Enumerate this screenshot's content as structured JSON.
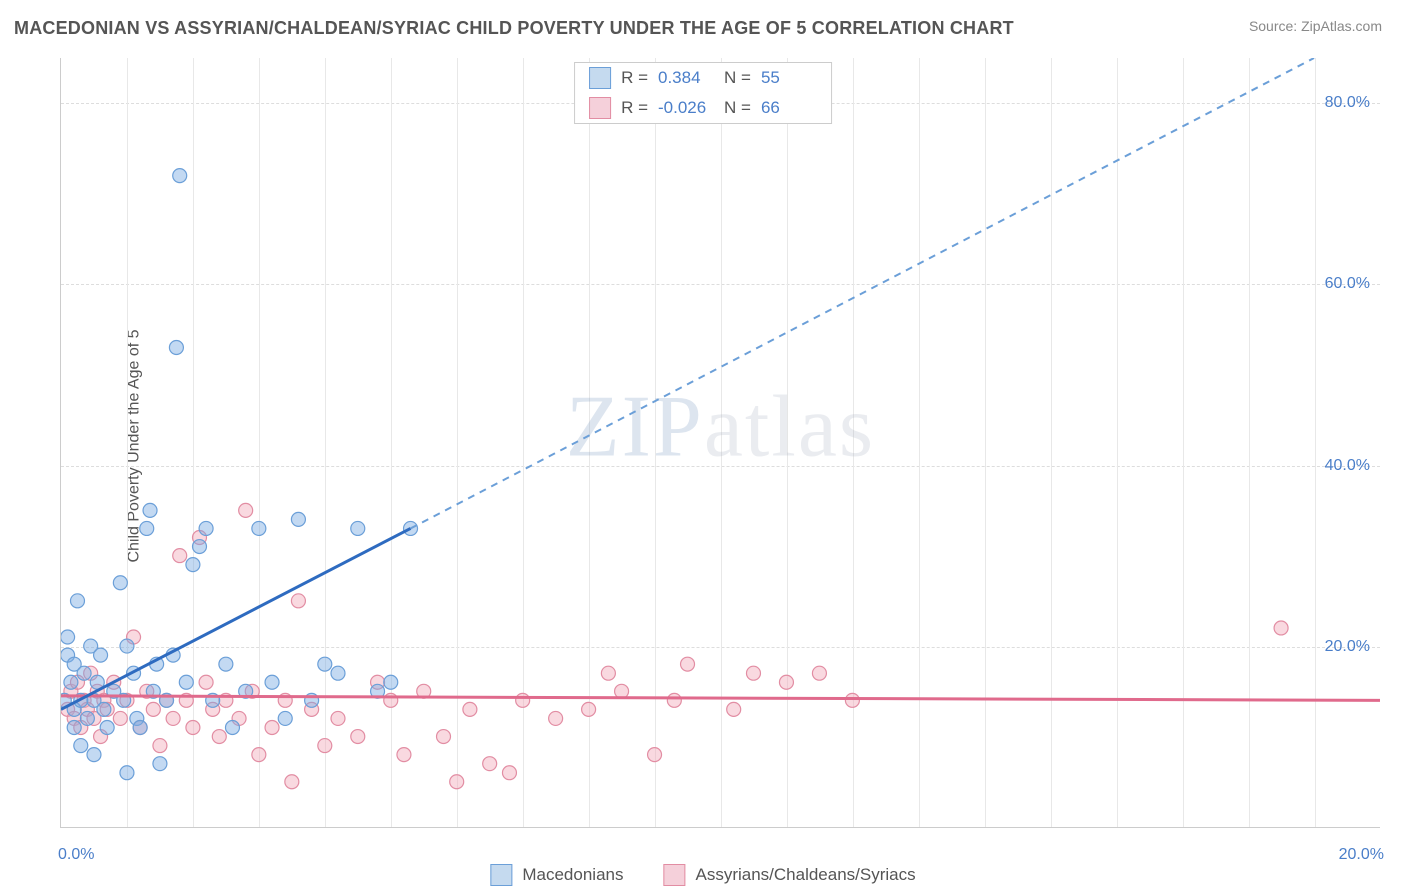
{
  "title": "MACEDONIAN VS ASSYRIAN/CHALDEAN/SYRIAC CHILD POVERTY UNDER THE AGE OF 5 CORRELATION CHART",
  "source": "Source: ZipAtlas.com",
  "y_axis_label": "Child Poverty Under the Age of 5",
  "watermark_a": "ZIP",
  "watermark_b": "atlas",
  "chart": {
    "type": "scatter",
    "xlim": [
      0,
      20
    ],
    "ylim": [
      0,
      85
    ],
    "x_ticks": [
      0,
      20
    ],
    "x_tick_labels": [
      "0.0%",
      "20.0%"
    ],
    "y_ticks": [
      20,
      40,
      60,
      80
    ],
    "y_tick_labels": [
      "20.0%",
      "40.0%",
      "60.0%",
      "80.0%"
    ],
    "x_minor_grid": [
      1,
      2,
      3,
      4,
      5,
      6,
      7,
      8,
      9,
      10,
      11,
      12,
      13,
      14,
      15,
      16,
      17,
      18,
      19
    ],
    "background_color": "#ffffff",
    "grid_color": "#dddddd",
    "minor_grid_color": "#eeeeee",
    "axis_color": "#cccccc",
    "tick_label_color": "#4a7ec9",
    "tick_label_fontsize": 16,
    "title_color": "#555555",
    "title_fontsize": 18,
    "series": [
      {
        "name": "Macedonians",
        "color_fill": "rgba(123,171,227,0.45)",
        "color_stroke": "#6b9fd8",
        "swatch_fill": "#c5daef",
        "swatch_border": "#6b9fd8",
        "marker": "circle",
        "marker_radius": 7,
        "R": "0.384",
        "N": "55",
        "trend": {
          "x1": 0,
          "y1": 13,
          "x2": 5.3,
          "y2": 33,
          "color": "#2e6bc0",
          "width": 3,
          "style": "solid"
        },
        "trend_ext": {
          "x1": 5.3,
          "y1": 33,
          "x2": 19.0,
          "y2": 85,
          "color": "#6b9fd8",
          "width": 2,
          "style": "dashed"
        },
        "points": [
          [
            0.05,
            14
          ],
          [
            0.1,
            19
          ],
          [
            0.1,
            21
          ],
          [
            0.15,
            16
          ],
          [
            0.2,
            13
          ],
          [
            0.2,
            18
          ],
          [
            0.2,
            11
          ],
          [
            0.25,
            25
          ],
          [
            0.3,
            14
          ],
          [
            0.3,
            9
          ],
          [
            0.35,
            17
          ],
          [
            0.4,
            12
          ],
          [
            0.45,
            20
          ],
          [
            0.5,
            14
          ],
          [
            0.5,
            8
          ],
          [
            0.55,
            16
          ],
          [
            0.6,
            19
          ],
          [
            0.65,
            13
          ],
          [
            0.7,
            11
          ],
          [
            0.8,
            15
          ],
          [
            0.9,
            27
          ],
          [
            0.95,
            14
          ],
          [
            1.0,
            20
          ],
          [
            1.1,
            17
          ],
          [
            1.15,
            12
          ],
          [
            1.2,
            11
          ],
          [
            1.3,
            33
          ],
          [
            1.35,
            35
          ],
          [
            1.4,
            15
          ],
          [
            1.45,
            18
          ],
          [
            1.5,
            7
          ],
          [
            1.6,
            14
          ],
          [
            1.7,
            19
          ],
          [
            1.75,
            53
          ],
          [
            1.8,
            72
          ],
          [
            1.9,
            16
          ],
          [
            2.0,
            29
          ],
          [
            2.1,
            31
          ],
          [
            2.2,
            33
          ],
          [
            2.3,
            14
          ],
          [
            2.5,
            18
          ],
          [
            2.6,
            11
          ],
          [
            2.8,
            15
          ],
          [
            3.0,
            33
          ],
          [
            3.2,
            16
          ],
          [
            3.4,
            12
          ],
          [
            3.6,
            34
          ],
          [
            3.8,
            14
          ],
          [
            4.0,
            18
          ],
          [
            4.2,
            17
          ],
          [
            4.5,
            33
          ],
          [
            4.8,
            15
          ],
          [
            5.0,
            16
          ],
          [
            5.3,
            33
          ],
          [
            1.0,
            6
          ]
        ]
      },
      {
        "name": "Assyrians/Chaldeans/Syriacs",
        "color_fill": "rgba(241,170,187,0.45)",
        "color_stroke": "#e28da3",
        "swatch_fill": "#f5d0da",
        "swatch_border": "#e28da3",
        "marker": "circle",
        "marker_radius": 7,
        "R": "-0.026",
        "N": "66",
        "trend": {
          "x1": 0,
          "y1": 14.5,
          "x2": 20,
          "y2": 14.0,
          "color": "#e06a8c",
          "width": 3,
          "style": "solid"
        },
        "points": [
          [
            0.1,
            13
          ],
          [
            0.15,
            15
          ],
          [
            0.2,
            12
          ],
          [
            0.25,
            16
          ],
          [
            0.3,
            11
          ],
          [
            0.35,
            14
          ],
          [
            0.4,
            13
          ],
          [
            0.45,
            17
          ],
          [
            0.5,
            12
          ],
          [
            0.55,
            15
          ],
          [
            0.6,
            10
          ],
          [
            0.65,
            14
          ],
          [
            0.7,
            13
          ],
          [
            0.8,
            16
          ],
          [
            0.9,
            12
          ],
          [
            1.0,
            14
          ],
          [
            1.1,
            21
          ],
          [
            1.2,
            11
          ],
          [
            1.3,
            15
          ],
          [
            1.4,
            13
          ],
          [
            1.5,
            9
          ],
          [
            1.6,
            14
          ],
          [
            1.7,
            12
          ],
          [
            1.8,
            30
          ],
          [
            1.9,
            14
          ],
          [
            2.0,
            11
          ],
          [
            2.1,
            32
          ],
          [
            2.2,
            16
          ],
          [
            2.3,
            13
          ],
          [
            2.4,
            10
          ],
          [
            2.5,
            14
          ],
          [
            2.7,
            12
          ],
          [
            2.8,
            35
          ],
          [
            2.9,
            15
          ],
          [
            3.0,
            8
          ],
          [
            3.2,
            11
          ],
          [
            3.4,
            14
          ],
          [
            3.6,
            25
          ],
          [
            3.8,
            13
          ],
          [
            4.0,
            9
          ],
          [
            4.2,
            12
          ],
          [
            4.5,
            10
          ],
          [
            4.8,
            16
          ],
          [
            5.0,
            14
          ],
          [
            5.2,
            8
          ],
          [
            5.5,
            15
          ],
          [
            5.8,
            10
          ],
          [
            6.0,
            5
          ],
          [
            6.2,
            13
          ],
          [
            6.5,
            7
          ],
          [
            6.8,
            6
          ],
          [
            7.0,
            14
          ],
          [
            7.5,
            12
          ],
          [
            8.0,
            13
          ],
          [
            8.3,
            17
          ],
          [
            8.5,
            15
          ],
          [
            9.0,
            8
          ],
          [
            9.3,
            14
          ],
          [
            9.5,
            18
          ],
          [
            10.2,
            13
          ],
          [
            10.5,
            17
          ],
          [
            11.0,
            16
          ],
          [
            11.5,
            17
          ],
          [
            12.0,
            14
          ],
          [
            18.5,
            22
          ],
          [
            3.5,
            5
          ]
        ]
      }
    ]
  },
  "legend_bottom": [
    {
      "label": "Macedonians"
    },
    {
      "label": "Assyrians/Chaldeans/Syriacs"
    }
  ]
}
